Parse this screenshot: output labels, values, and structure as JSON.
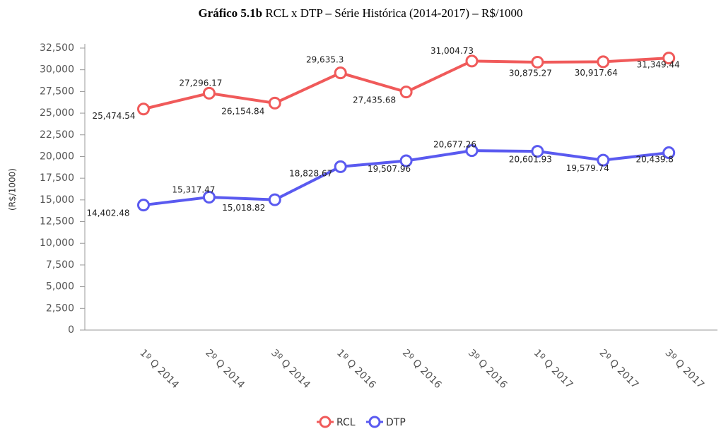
{
  "chart_data": {
    "type": "line",
    "title_label": "Gráfico 5.1b",
    "title": "RCL x DTP – Série Histórica (2014-2017) – R$/1000",
    "ylabel": "(R$/1000)",
    "categories": [
      "1º Q 2014",
      "2º Q 2014",
      "3º Q 2014",
      "1º Q 2016",
      "2º Q 2016",
      "3º Q 2016",
      "1º Q 2017",
      "2º Q 2017",
      "3º Q 2017"
    ],
    "series": [
      {
        "name": "RCL",
        "color": "#f05a5a",
        "values": [
          25474.54,
          27296.17,
          26154.84,
          29635.3,
          27435.68,
          31004.73,
          30875.27,
          30917.64,
          31349.44
        ],
        "value_labels": [
          "25,474.54",
          "27,296.17",
          "26,154.84",
          "29,635.3",
          "27,435.68",
          "31,004.73",
          "30,875.27",
          "30,917.64",
          "31,349.44"
        ]
      },
      {
        "name": "DTP",
        "color": "#5a5af0",
        "values": [
          14402.48,
          15317.47,
          15018.82,
          18828.67,
          19507.96,
          20677.26,
          20601.93,
          19579.74,
          20439.8
        ],
        "value_labels": [
          "14,402.48",
          "15,317.47",
          "15,018.82",
          "18,828.67",
          "19,507.96",
          "20,677.26",
          "20,601.93",
          "19,579.74",
          "20,439.8"
        ]
      }
    ],
    "ylim": [
      0,
      32500
    ],
    "yticks": [
      0,
      {
        "value": 2500,
        "label": "2,500"
      },
      {
        "value": 5000,
        "label": "5,000"
      },
      {
        "value": 7500,
        "label": "7,500"
      },
      {
        "value": 10000,
        "label": "10,000"
      },
      {
        "value": 12500,
        "label": "12,500"
      },
      {
        "value": 15000,
        "label": "15,000"
      },
      {
        "value": 17500,
        "label": "17,500"
      },
      {
        "value": 20000,
        "label": "20,000"
      },
      {
        "value": 22500,
        "label": "22,500"
      },
      {
        "value": 25000,
        "label": "25,000"
      },
      {
        "value": 27500,
        "label": "27,500"
      },
      {
        "value": 30000,
        "label": "30,000"
      },
      {
        "value": 32500,
        "label": "32,500"
      }
    ],
    "legend": "bottom"
  }
}
